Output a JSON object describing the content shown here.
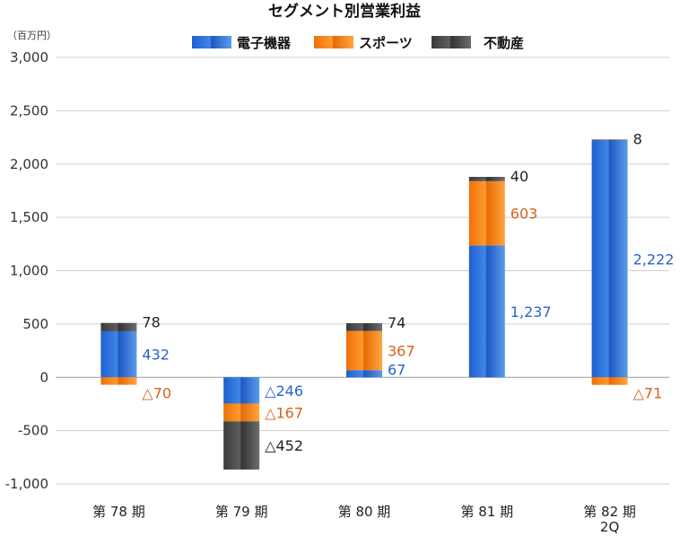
{
  "chart_data": {
    "type": "bar",
    "stacked": true,
    "title": "セグメント別営業利益",
    "unit": "（百万円）",
    "categories": [
      "第 78 期",
      "第 79 期",
      "第 80 期",
      "第 81 期",
      "第 82 期"
    ],
    "category_sublabels": [
      "",
      "",
      "",
      "",
      "2Q"
    ],
    "ylim": [
      -1000,
      3000
    ],
    "yticks": [
      -1000,
      -500,
      0,
      500,
      1000,
      1500,
      2000,
      2500,
      3000
    ],
    "ytick_labels": [
      "-1,000",
      "-500",
      "0",
      "500",
      "1,000",
      "1,500",
      "2,000",
      "2,500",
      "3,000"
    ],
    "grid": true,
    "legend_position": "top",
    "series": [
      {
        "name": "電子機器",
        "color": "#2f6fd6",
        "values": [
          432,
          -246,
          67,
          1237,
          2222
        ],
        "labels": [
          "432",
          "△246",
          "67",
          "1,237",
          "2,222"
        ]
      },
      {
        "name": "スポーツ",
        "color": "#f07d12",
        "values": [
          -70,
          -167,
          367,
          603,
          -71
        ],
        "labels": [
          "△70",
          "△167",
          "367",
          "603",
          "△71"
        ]
      },
      {
        "name": "不動産",
        "color": "#4a4a4a",
        "values": [
          78,
          -452,
          74,
          40,
          8
        ],
        "labels": [
          "78",
          "△452",
          "74",
          "40",
          "8"
        ]
      }
    ],
    "label_colors": [
      "#2a62c9",
      "#d4621a",
      "#222222"
    ]
  }
}
